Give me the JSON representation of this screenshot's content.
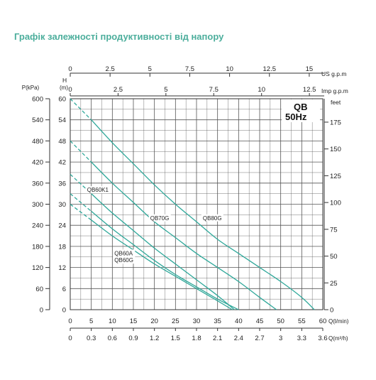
{
  "chart_data": {
    "type": "line",
    "title": "Графік залежності продуктивності від напору",
    "badge": {
      "model": "QB",
      "freq": "50Hz"
    },
    "x_main": {
      "label": "Q(l/min)",
      "ticks": [
        0,
        5,
        10,
        15,
        20,
        25,
        30,
        35,
        40,
        45,
        50,
        55,
        60
      ],
      "range": [
        0,
        60
      ]
    },
    "x_m3h": {
      "label": "Q(m³/h)",
      "ticks": [
        "0",
        "0.3",
        "0.6",
        "0.9",
        "1.2",
        "1.5",
        "1.8",
        "2.1",
        "2.4",
        "2.7",
        "3",
        "3.3",
        "3.6"
      ]
    },
    "x_us": {
      "label": "US g.p.m",
      "ticks": [
        "0",
        "2.5",
        "5",
        "7.5",
        "10",
        "12.5",
        "15"
      ],
      "max": 15.85
    },
    "x_imp": {
      "label": "Imp g.p.m",
      "ticks": [
        "0",
        "2.5",
        "5",
        "7.5",
        "10",
        "12.5"
      ],
      "max": 13.2
    },
    "y_head": {
      "label": "H",
      "unit": "(m)",
      "ticks": [
        "0",
        "6",
        "12",
        "18",
        "24",
        "30",
        "36",
        "42",
        "48",
        "54",
        "60"
      ],
      "range": [
        0,
        60
      ]
    },
    "y_pressure": {
      "label": "P(kPa)",
      "ticks": [
        "0",
        "60",
        "120",
        "180",
        "240",
        "300",
        "360",
        "420",
        "480",
        "540",
        "600"
      ]
    },
    "y_feet": {
      "label": "feet",
      "ticks": [
        "0",
        "25",
        "50",
        "75",
        "100",
        "125",
        "150",
        "175"
      ],
      "max": 196.85
    },
    "series": [
      {
        "name": "QB80G",
        "dash_to": 5,
        "points": [
          [
            0,
            60
          ],
          [
            5,
            54
          ],
          [
            10,
            47.5
          ],
          [
            15,
            41.5
          ],
          [
            20,
            35.5
          ],
          [
            25,
            30
          ],
          [
            30,
            25
          ],
          [
            35,
            20
          ],
          [
            40,
            16
          ],
          [
            45,
            12
          ],
          [
            50,
            8
          ],
          [
            55,
            3.5
          ],
          [
            58,
            0
          ]
        ]
      },
      {
        "name": "QB70G",
        "dash_to": 5,
        "points": [
          [
            0,
            48
          ],
          [
            5,
            42
          ],
          [
            10,
            36
          ],
          [
            15,
            30.5
          ],
          [
            20,
            25
          ],
          [
            25,
            20.5
          ],
          [
            30,
            16
          ],
          [
            35,
            12
          ],
          [
            40,
            8
          ],
          [
            45,
            3.5
          ],
          [
            49,
            0
          ]
        ]
      },
      {
        "name": "QB60K1",
        "dash_to": 5,
        "points": [
          [
            0,
            38.5
          ],
          [
            5,
            33
          ],
          [
            10,
            27.5
          ],
          [
            15,
            22.5
          ],
          [
            20,
            17.5
          ],
          [
            25,
            13
          ],
          [
            30,
            8.5
          ],
          [
            35,
            4
          ],
          [
            39,
            0
          ]
        ]
      },
      {
        "name": "QB60A",
        "dash_to": 5,
        "points": [
          [
            0,
            33
          ],
          [
            5,
            28
          ],
          [
            10,
            23
          ],
          [
            15,
            18.5
          ],
          [
            20,
            14
          ],
          [
            25,
            10
          ],
          [
            30,
            6.5
          ],
          [
            35,
            3
          ],
          [
            40,
            0
          ]
        ]
      },
      {
        "name": "QB60G",
        "dash_to": 5,
        "points": [
          [
            0,
            30
          ],
          [
            5,
            25.5
          ],
          [
            10,
            21
          ],
          [
            15,
            17
          ],
          [
            20,
            13
          ],
          [
            25,
            9.5
          ],
          [
            30,
            6
          ],
          [
            35,
            2.5
          ],
          [
            38.5,
            0
          ]
        ]
      }
    ],
    "curve_labels": [
      {
        "text": "QB60K1",
        "x": 4,
        "y": 33.5
      },
      {
        "text": "QB70G",
        "x": 19,
        "y": 25.5
      },
      {
        "text": "QB80G",
        "x": 31.5,
        "y": 25.5
      },
      {
        "text": "QB60A",
        "x": 10.5,
        "y": 15.5
      },
      {
        "text": "QB60G",
        "x": 10.5,
        "y": 13.5
      }
    ],
    "grid": true,
    "colors": {
      "curve": "#2fa89a",
      "title": "#4cae9c",
      "grid": "#555555",
      "axis": "#333333"
    }
  }
}
